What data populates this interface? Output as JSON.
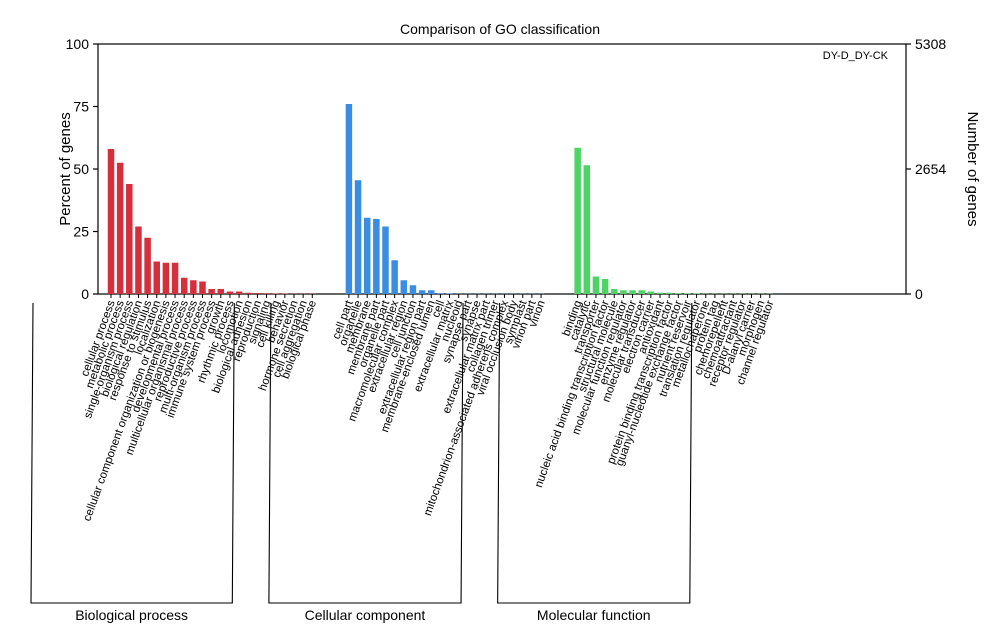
{
  "chart_data": {
    "type": "bar",
    "title": "Comparison of GO classification",
    "legend": "DY-D_DY-CK",
    "ylabel_left": "Percent of genes",
    "ylabel_right": "Number of genes",
    "ylim": [
      0,
      100
    ],
    "yticks_left": [
      "100",
      "75",
      "50",
      "25",
      "0"
    ],
    "yticks_right": [
      "5308",
      "2654",
      "0"
    ],
    "groups": [
      {
        "name": "Biological process",
        "color": "#d62f3c",
        "categories": [
          "cellular process",
          "metabolic process",
          "single-organism process",
          "biological regulation",
          "response to stimulus",
          "localization",
          "cellular component organization or biogenesis",
          "developmental process",
          "multicellular organismal process",
          "reproductive process",
          "multi-organism process",
          "immune system process",
          "growth",
          "rhythmic process",
          "locomotion",
          "biological adhesion",
          "reproduction",
          "signaling",
          "cell killing",
          "behavior",
          "hormone secretion",
          "cell aggregation",
          "biological phase"
        ],
        "values": [
          58,
          52.5,
          44,
          27,
          22.5,
          13,
          12.5,
          12.5,
          6.5,
          5.5,
          5,
          2,
          2,
          1,
          1,
          0.5,
          0.4,
          0.3,
          0.2,
          0.2,
          0.1,
          0.1,
          0.1
        ]
      },
      {
        "name": "Cellular component",
        "color": "#3a8de0",
        "categories": [
          "cell part",
          "organelle",
          "membrane",
          "membrane part",
          "organelle part",
          "macromolecular complex",
          "extracellular region",
          "cell junction",
          "extracellular region part",
          "membrane-enclosed lumen",
          "cell",
          "extracellular matrix",
          "nucleoid",
          "synapse part",
          "synapse",
          "extracellular matrix part",
          "collagen trimer",
          "mitochondrion-associated adherens complex",
          "viral occlusion body",
          "symplast",
          "virion part",
          "virion"
        ],
        "values": [
          76,
          45.5,
          30.5,
          30,
          27,
          13.5,
          5.5,
          3.5,
          1.5,
          1.5,
          0.3,
          0.2,
          0.1,
          0.1,
          0.1,
          0.1,
          0.1,
          0.1,
          0.1,
          0.1,
          0.1,
          0.1
        ]
      },
      {
        "name": "Molecular function",
        "color": "#4ed465",
        "categories": [
          "binding",
          "catalytic",
          "transporter",
          "nucleic acid binding transcription factor",
          "structural molecule",
          "molecular function regulator",
          "enzyme regulator",
          "molecular transducer",
          "electron carrier",
          "antioxidant",
          "protein binding transcription factor",
          "guanyl-nucleotide exchange factor",
          "nutrient reservoir",
          "translation regulator",
          "metallochaperone",
          "protein tag",
          "chemorepellent",
          "chemoattractant",
          "receptor regulator",
          "D-alanyl carrier",
          "morphogen",
          "channel regulator"
        ],
        "values": [
          58.5,
          51.5,
          7,
          6,
          2,
          1.5,
          1.5,
          1.5,
          1,
          0.5,
          0.5,
          0.3,
          0.2,
          0.2,
          0.1,
          0.1,
          0.1,
          0.1,
          0.1,
          0.1,
          0.1,
          0.1
        ]
      }
    ]
  }
}
